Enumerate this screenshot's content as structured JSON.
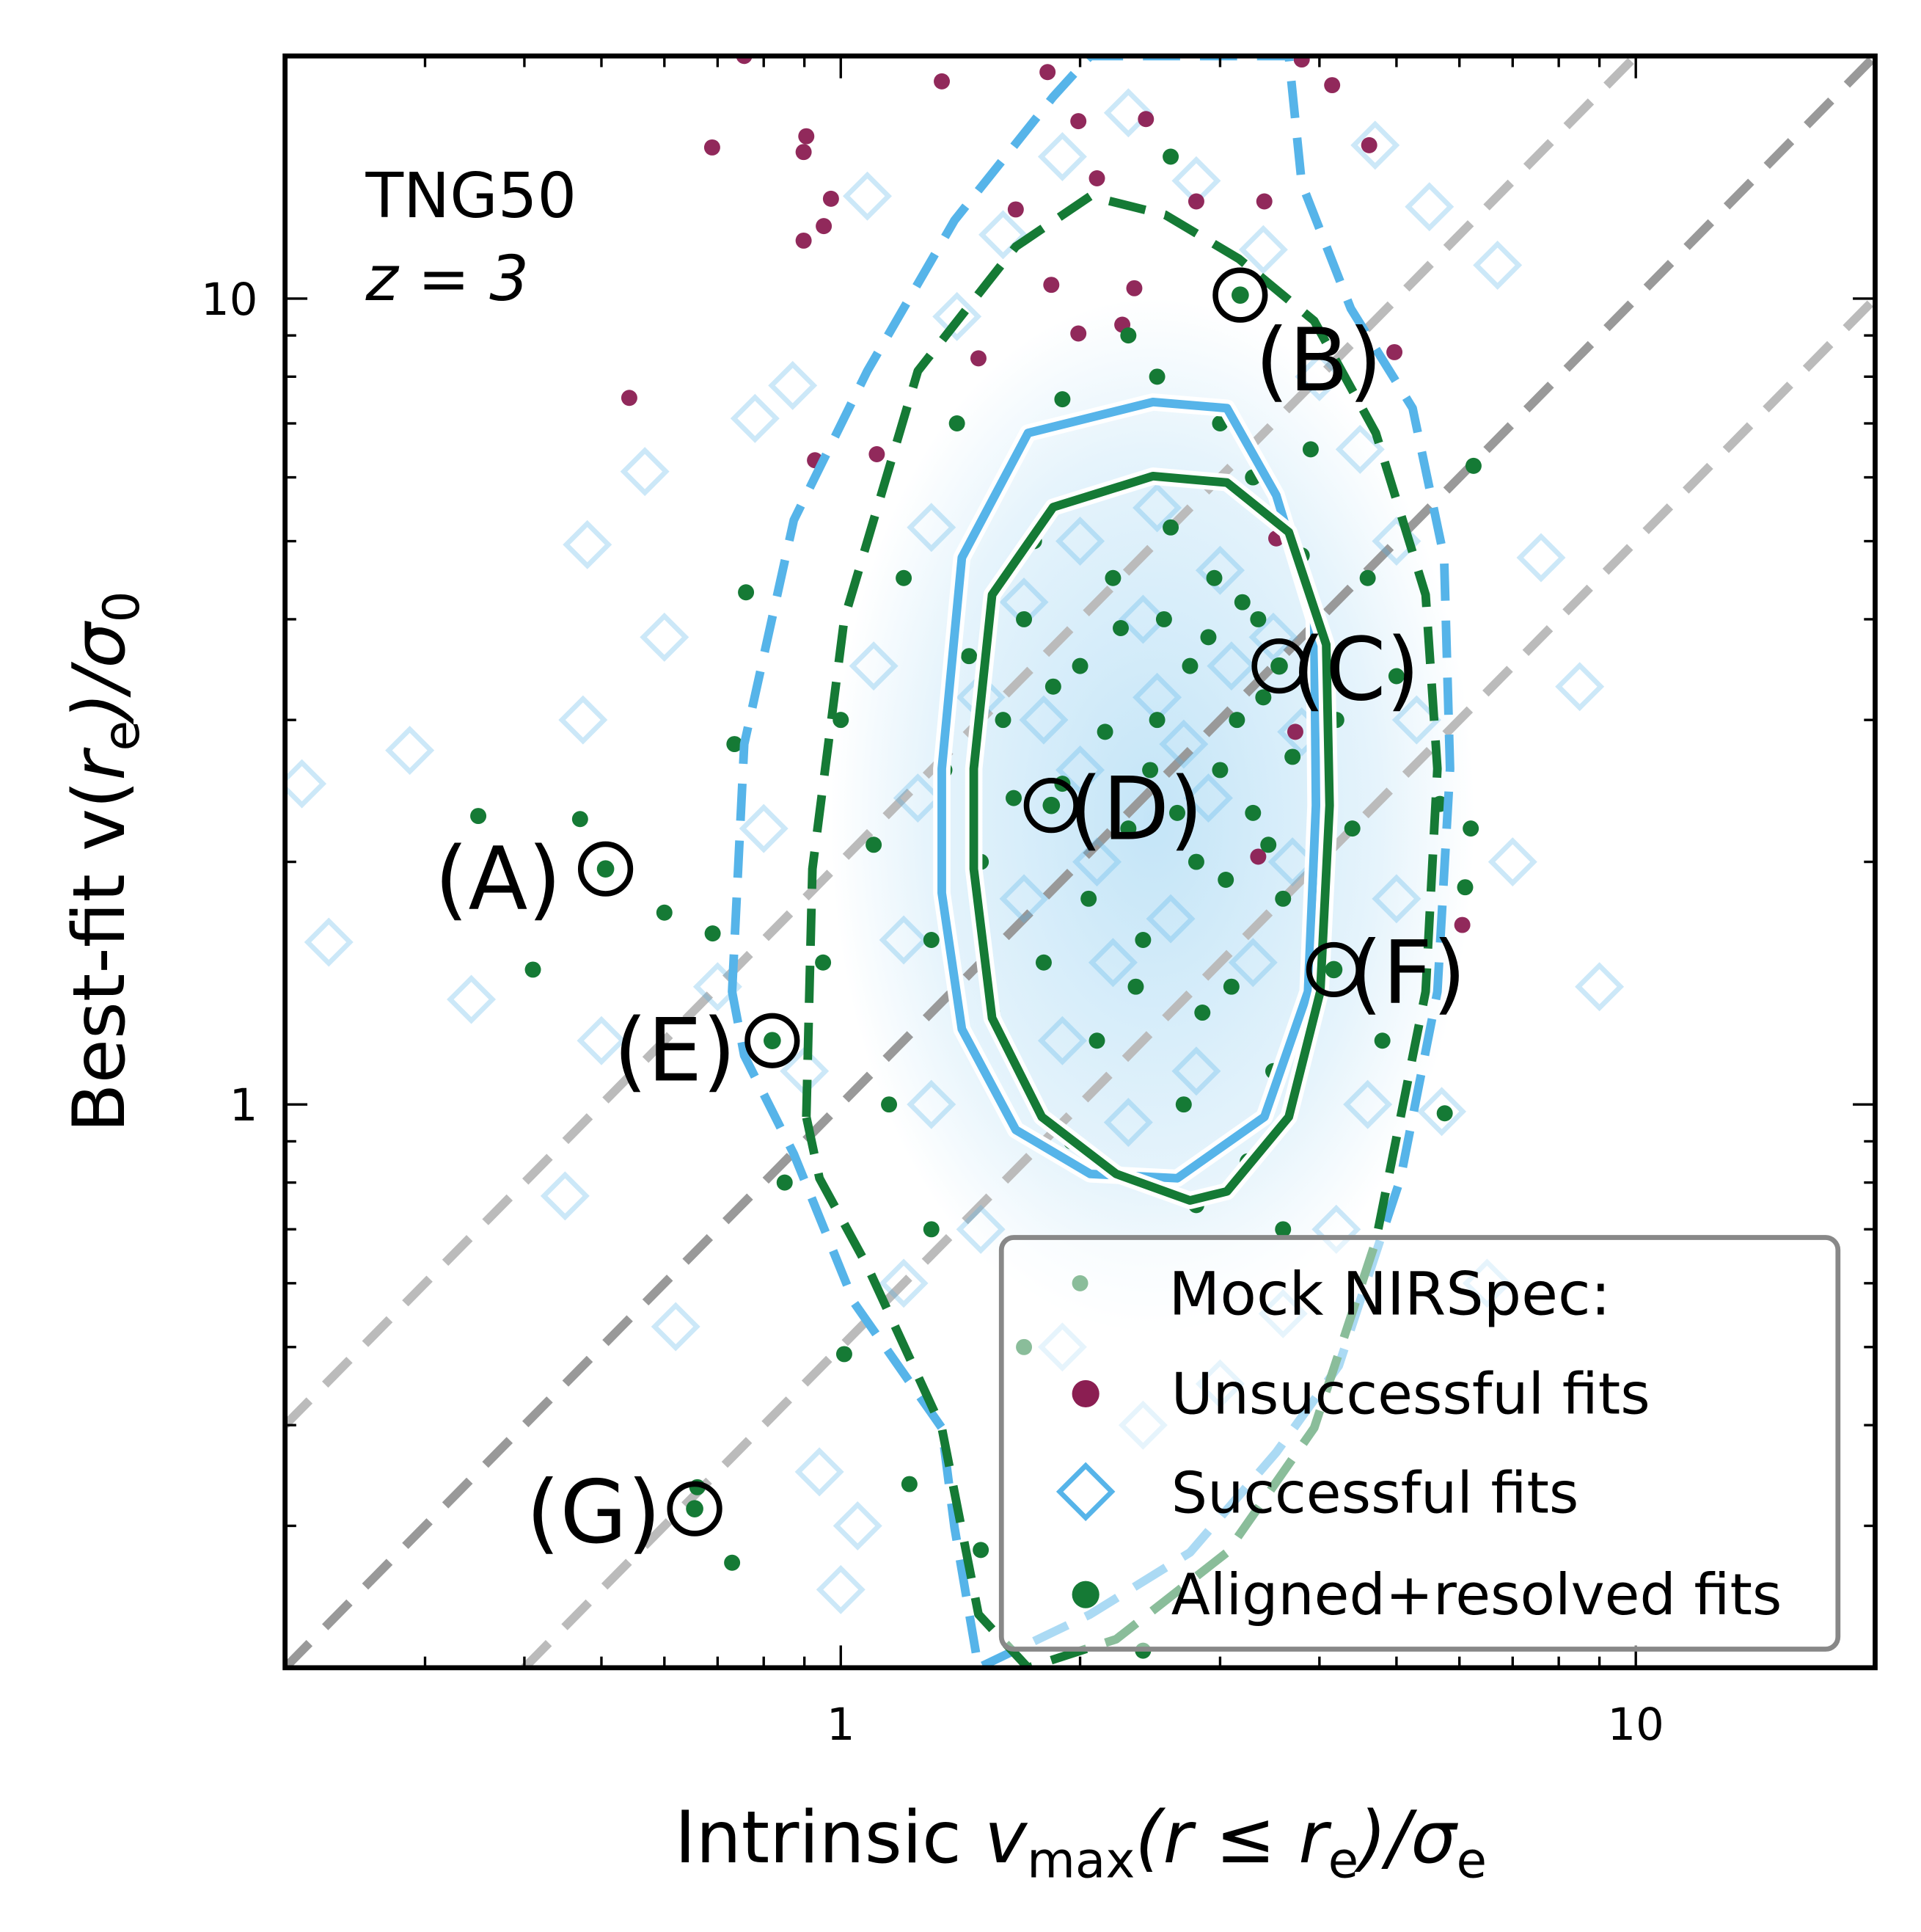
{
  "chart_data": {
    "type": "scatter",
    "xlabel": "Intrinsic v_max(r ≤ r_e)/σ_e",
    "xlabel_parts": {
      "main": "Intrinsic ",
      "v": "v",
      "sub1": "max",
      "mid": "(r ≤ r",
      "sub2": "e",
      "end": ")/σ",
      "sub3": "e"
    },
    "ylabel_parts": {
      "main": "Best-fit v(",
      "r": "r",
      "sub1": "e",
      "end": ")/σ",
      "sub2": "0"
    },
    "ylabel": "Best-fit v(r_e)/σ_0",
    "xscale": "log",
    "yscale": "log",
    "xlim": [
      0.2,
      20
    ],
    "ylim": [
      0.2,
      20
    ],
    "xticks": [
      {
        "value": 1,
        "label": "1"
      },
      {
        "value": 10,
        "label": "10"
      }
    ],
    "yticks": [
      {
        "value": 1,
        "label": "1"
      },
      {
        "value": 10,
        "label": "10"
      }
    ],
    "text_annotation": [
      "TNG50",
      "z = 3"
    ],
    "reference_lines": [
      {
        "name": "y = 2x",
        "factor": 2,
        "color": "#bbbbbb"
      },
      {
        "name": "y = x",
        "factor": 1,
        "color": "#999999"
      },
      {
        "name": "y = 0.5x",
        "factor": 0.5,
        "color": "#bbbbbb"
      }
    ],
    "legend": {
      "placement": "bottom-right",
      "title": "Mock NIRSpec:",
      "entries": [
        {
          "label": "Unsuccessful fits",
          "marker": "circle",
          "color": "#8B1E52"
        },
        {
          "label": "Successful fits",
          "marker": "diamond",
          "color": "#56B4E9"
        },
        {
          "label": "Aligned+resolved fits",
          "marker": "circle",
          "color": "#157A35"
        }
      ]
    },
    "series": [
      {
        "name": "Successful fits",
        "marker": "diamond",
        "color": "#56B4E9",
        "points": [
          [
            0.287,
            2.75
          ],
          [
            0.343,
            1.35
          ],
          [
            0.474,
            3.0
          ],
          [
            0.48,
            4.95
          ],
          [
            0.567,
            6.1
          ],
          [
            0.45,
            0.77
          ],
          [
            0.78,
            7.1
          ],
          [
            0.87,
            7.8
          ],
          [
            1.08,
            13.4
          ],
          [
            7.6,
            4.77
          ],
          [
            8.5,
            3.3
          ],
          [
            5.7,
            0.98
          ],
          [
            6.7,
            11
          ],
          [
            4.7,
            15.5
          ],
          [
            1.0,
            0.25
          ],
          [
            0.94,
            0.35
          ],
          [
            0.62,
            0.53
          ],
          [
            0.227,
            1.59
          ],
          [
            0.21,
            2.5
          ],
          [
            0.6,
            3.8
          ],
          [
            0.7,
            1.4
          ],
          [
            0.9,
            1.1
          ],
          [
            0.8,
            2.2
          ],
          [
            1.2,
            0.6
          ],
          [
            1.1,
            3.5
          ],
          [
            1.3,
            5.2
          ],
          [
            1.4,
            9.5
          ],
          [
            1.6,
            12.0
          ],
          [
            1.9,
            15.0
          ],
          [
            2.3,
            17.0
          ],
          [
            2.8,
            14.0
          ],
          [
            3.4,
            11.5
          ],
          [
            4.0,
            8.0
          ],
          [
            4.5,
            6.5
          ],
          [
            5.0,
            5.0
          ],
          [
            5.3,
            3.0
          ],
          [
            5.0,
            1.8
          ],
          [
            4.6,
            1.0
          ],
          [
            4.2,
            0.7
          ],
          [
            3.6,
            0.55
          ],
          [
            3.0,
            0.45
          ],
          [
            2.4,
            0.4
          ],
          [
            1.9,
            0.5
          ],
          [
            1.5,
            0.7
          ],
          [
            1.3,
            1.0
          ],
          [
            1.2,
            1.6
          ],
          [
            1.25,
            2.4
          ],
          [
            1.5,
            3.2
          ],
          [
            1.7,
            4.2
          ],
          [
            2.0,
            5.0
          ],
          [
            2.5,
            5.5
          ],
          [
            3.0,
            4.6
          ],
          [
            3.5,
            3.8
          ],
          [
            3.8,
            2.9
          ],
          [
            3.7,
            2.0
          ],
          [
            3.3,
            1.5
          ],
          [
            2.8,
            1.1
          ],
          [
            2.3,
            0.95
          ],
          [
            1.9,
            1.2
          ],
          [
            1.7,
            1.8
          ],
          [
            2.0,
            2.6
          ],
          [
            2.5,
            3.2
          ],
          [
            2.9,
            2.4
          ],
          [
            2.6,
            1.7
          ],
          [
            2.2,
            1.5
          ],
          [
            2.1,
            2.0
          ],
          [
            2.7,
            2.8
          ],
          [
            3.1,
            3.5
          ],
          [
            2.4,
            4.0
          ],
          [
            1.8,
            3.0
          ],
          [
            6.5,
            0.6
          ],
          [
            7.0,
            2.0
          ],
          [
            9.0,
            1.4
          ],
          [
            5.5,
            13.0
          ],
          [
            0.5,
            1.2
          ],
          [
            1.05,
            0.3
          ]
        ]
      },
      {
        "name": "Unsuccessful fits",
        "marker": "circle",
        "color": "#8B1E52",
        "points": [
          [
            0.689,
            15.4
          ],
          [
            0.905,
            15.9
          ],
          [
            0.898,
            15.2
          ],
          [
            0.972,
            13.3
          ],
          [
            0.952,
            12.3
          ],
          [
            0.898,
            11.8
          ],
          [
            0.542,
            7.53
          ],
          [
            0.928,
            6.3
          ],
          [
            1.11,
            6.41
          ],
          [
            0.756,
            20
          ],
          [
            1.34,
            18.6
          ],
          [
            1.82,
            19.1
          ],
          [
            1.99,
            16.6
          ],
          [
            2.42,
            16.7
          ],
          [
            2.1,
            14.1
          ],
          [
            1.66,
            12.9
          ],
          [
            1.84,
            10.4
          ],
          [
            1.99,
            9.05
          ],
          [
            2.26,
            9.28
          ],
          [
            2.34,
            10.3
          ],
          [
            2.8,
            13.2
          ],
          [
            3.41,
            13.2
          ],
          [
            3.8,
            19.8
          ],
          [
            4.15,
            18.4
          ],
          [
            4.62,
            15.5
          ],
          [
            4.97,
            8.58
          ],
          [
            6.05,
            1.67
          ],
          [
            3.35,
            2.03
          ],
          [
            3.53,
            5.04
          ],
          [
            3.73,
            2.9
          ],
          [
            1.49,
            8.43
          ]
        ]
      },
      {
        "name": "Aligned+resolved fits",
        "marker": "circle",
        "color": "#157A35",
        "points": [
          [
            0.35,
            2.28
          ],
          [
            0.47,
            2.26
          ],
          [
            0.41,
            1.47
          ],
          [
            0.6,
            1.73
          ],
          [
            0.69,
            1.63
          ],
          [
            0.76,
            4.32
          ],
          [
            0.735,
            2.8
          ],
          [
            0.66,
            0.335
          ],
          [
            0.73,
            0.27
          ],
          [
            1.01,
            0.49
          ],
          [
            1.22,
            0.338
          ],
          [
            6.2,
            2.2
          ],
          [
            6.1,
            1.86
          ],
          [
            6.25,
            6.2
          ],
          [
            5.75,
            0.975
          ],
          [
            5.67,
            2.36
          ],
          [
            1.5,
            2.0
          ],
          [
            1.6,
            3.0
          ],
          [
            1.7,
            4.0
          ],
          [
            1.8,
            1.5
          ],
          [
            1.9,
            2.5
          ],
          [
            2.0,
            3.5
          ],
          [
            2.1,
            1.2
          ],
          [
            2.2,
            4.5
          ],
          [
            2.3,
            2.2
          ],
          [
            2.4,
            1.6
          ],
          [
            2.5,
            3.0
          ],
          [
            2.6,
            5.2
          ],
          [
            2.7,
            1.0
          ],
          [
            2.8,
            2.0
          ],
          [
            2.9,
            3.8
          ],
          [
            3.0,
            2.6
          ],
          [
            3.1,
            1.4
          ],
          [
            3.2,
            4.2
          ],
          [
            3.3,
            2.3
          ],
          [
            3.4,
            3.2
          ],
          [
            3.5,
            1.1
          ],
          [
            3.6,
            1.8
          ],
          [
            3.7,
            2.7
          ],
          [
            3.8,
            4.8
          ],
          [
            1.55,
            1.3
          ],
          [
            1.65,
            2.4
          ],
          [
            1.75,
            5.0
          ],
          [
            1.85,
            3.3
          ],
          [
            1.95,
            0.9
          ],
          [
            2.05,
            1.8
          ],
          [
            2.15,
            2.9
          ],
          [
            2.25,
            3.9
          ],
          [
            2.35,
            1.4
          ],
          [
            2.45,
            2.6
          ],
          [
            2.55,
            4.0
          ],
          [
            2.65,
            2.3
          ],
          [
            2.75,
            3.5
          ],
          [
            2.85,
            1.3
          ],
          [
            2.95,
            4.5
          ],
          [
            3.05,
            1.9
          ],
          [
            3.15,
            3.0
          ],
          [
            3.25,
            0.85
          ],
          [
            3.35,
            4.0
          ],
          [
            3.45,
            2.1
          ],
          [
            1.45,
            3.6
          ],
          [
            1.35,
            2.6
          ],
          [
            1.3,
            1.6
          ],
          [
            1.2,
            4.5
          ],
          [
            1.15,
            1.0
          ],
          [
            1.1,
            2.1
          ],
          [
            4.0,
            1.6
          ],
          [
            4.2,
            3.0
          ],
          [
            4.4,
            2.2
          ],
          [
            4.6,
            4.5
          ],
          [
            4.8,
            1.2
          ],
          [
            5.0,
            3.4
          ],
          [
            1.4,
            7.0
          ],
          [
            1.9,
            7.5
          ],
          [
            2.5,
            8.0
          ],
          [
            3.0,
            7.0
          ],
          [
            3.9,
            6.5
          ],
          [
            0.95,
            1.5
          ],
          [
            1.0,
            3.0
          ],
          [
            0.85,
            0.8
          ],
          [
            1.3,
            0.7
          ],
          [
            2.0,
            0.6
          ],
          [
            2.8,
            0.75
          ],
          [
            3.6,
            0.7
          ],
          [
            2.6,
            15.0
          ],
          [
            2.3,
            9.0
          ],
          [
            3.3,
            6.0
          ],
          [
            1.7,
            0.5
          ],
          [
            1.5,
            0.28
          ],
          [
            2.4,
            0.21
          ]
        ]
      }
    ],
    "highlighted": [
      {
        "label": "(A)",
        "x": 0.506,
        "y": 1.96
      },
      {
        "label": "(B)",
        "x": 3.18,
        "y": 10.1
      },
      {
        "label": "(C)",
        "x": 3.56,
        "y": 3.5
      },
      {
        "label": "(D)",
        "x": 1.84,
        "y": 2.35
      },
      {
        "label": "(E)",
        "x": 0.82,
        "y": 1.2
      },
      {
        "label": "(F)",
        "x": 4.17,
        "y": 1.47
      },
      {
        "label": "(G)",
        "x": 0.655,
        "y": 0.315
      }
    ],
    "contours": [
      {
        "name": "successful-outer",
        "color": "#56B4E9",
        "style": "dashed",
        "points": [
          [
            0.73,
            1.38
          ],
          [
            0.756,
            2.8
          ],
          [
            0.873,
            5.31
          ],
          [
            1.08,
            8.13
          ],
          [
            1.39,
            12.5
          ],
          [
            1.85,
            17.8
          ],
          [
            2.06,
            22
          ],
          [
            3.66,
            22
          ],
          [
            3.8,
            13.9
          ],
          [
            4.38,
            9.72
          ],
          [
            5.24,
            7.31
          ],
          [
            5.74,
            4.77
          ],
          [
            5.84,
            2.61
          ],
          [
            5.63,
            1.38
          ],
          [
            5.06,
            0.81
          ],
          [
            4.23,
            0.474
          ],
          [
            3.53,
            0.37
          ],
          [
            2.75,
            0.278
          ],
          [
            2.06,
            0.233
          ],
          [
            1.49,
            0.199
          ],
          [
            1.39,
            0.299
          ],
          [
            1.34,
            0.397
          ],
          [
            1.04,
            0.567
          ],
          [
            0.873,
            0.868
          ],
          [
            0.756,
            1.15
          ]
        ]
      },
      {
        "name": "aligned-outer",
        "color": "#157A35",
        "style": "dashed",
        "points": [
          [
            0.905,
            0.965
          ],
          [
            0.921,
            1.96
          ],
          [
            1.01,
            4.0
          ],
          [
            1.25,
            8.13
          ],
          [
            1.66,
            11.6
          ],
          [
            2.06,
            13.4
          ],
          [
            2.56,
            12.7
          ],
          [
            3.17,
            11.2
          ],
          [
            3.94,
            9.38
          ],
          [
            4.71,
            6.81
          ],
          [
            5.44,
            4.29
          ],
          [
            5.63,
            2.61
          ],
          [
            5.44,
            1.38
          ],
          [
            4.71,
            0.677
          ],
          [
            3.94,
            0.397
          ],
          [
            3.06,
            0.278
          ],
          [
            2.22,
            0.217
          ],
          [
            1.72,
            0.199
          ],
          [
            1.49,
            0.233
          ],
          [
            1.34,
            0.397
          ],
          [
            1.08,
            0.63
          ],
          [
            0.94,
            0.81
          ]
        ]
      },
      {
        "name": "successful-inner",
        "color": "#56B4E9",
        "style": "solid",
        "points": [
          [
            1.34,
            2.61
          ],
          [
            1.42,
            4.77
          ],
          [
            1.72,
            6.81
          ],
          [
            2.47,
            7.44
          ],
          [
            3.06,
            7.31
          ],
          [
            3.53,
            5.7
          ],
          [
            3.94,
            4.0
          ],
          [
            3.96,
            2.35
          ],
          [
            3.87,
            1.38
          ],
          [
            3.41,
            0.965
          ],
          [
            2.65,
            0.81
          ],
          [
            2.06,
            0.82
          ],
          [
            1.66,
            0.93
          ],
          [
            1.42,
            1.24
          ],
          [
            1.34,
            1.83
          ]
        ]
      },
      {
        "name": "aligned-inner",
        "color": "#157A35",
        "style": "solid",
        "points": [
          [
            1.47,
            2.61
          ],
          [
            1.55,
            4.29
          ],
          [
            1.85,
            5.51
          ],
          [
            2.47,
            6.02
          ],
          [
            3.06,
            5.91
          ],
          [
            3.66,
            5.13
          ],
          [
            4.08,
            3.72
          ],
          [
            4.12,
            2.35
          ],
          [
            4.01,
            1.38
          ],
          [
            3.66,
            0.965
          ],
          [
            3.06,
            0.78
          ],
          [
            2.75,
            0.76
          ],
          [
            2.22,
            0.82
          ],
          [
            1.79,
            0.965
          ],
          [
            1.55,
            1.28
          ],
          [
            1.47,
            1.96
          ]
        ]
      }
    ]
  }
}
